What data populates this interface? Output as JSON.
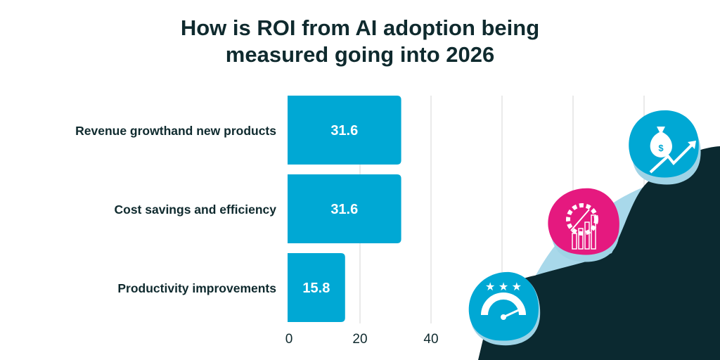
{
  "chart_data": {
    "type": "bar",
    "orientation": "horizontal",
    "title_lines": [
      "How is ROI from AI adoption being",
      "measured going into 2026"
    ],
    "categories": [
      "Revenue growthand new products",
      "Cost savings and efficiency",
      "Productivity improvements"
    ],
    "values": [
      31.6,
      31.6,
      15.8
    ],
    "data_labels": [
      "31.6",
      "31.6",
      "15.8"
    ],
    "xticks": [
      0,
      20,
      40
    ],
    "xtick_labels": [
      "0",
      "20",
      "40"
    ],
    "gridlines_at": [
      20,
      40,
      60,
      80,
      100
    ],
    "xlim": [
      0,
      100
    ],
    "grid": true,
    "colors": {
      "bar": "#00a8d4",
      "text": "#0f2a2e",
      "mountain": "#0b2930",
      "accent_pink": "#e5197f",
      "light_blue": "#a8d8ea"
    }
  },
  "illustration": {
    "icons": [
      "speedometer-stars-icon",
      "gear-chart-icon",
      "money-bag-growth-icon"
    ]
  }
}
